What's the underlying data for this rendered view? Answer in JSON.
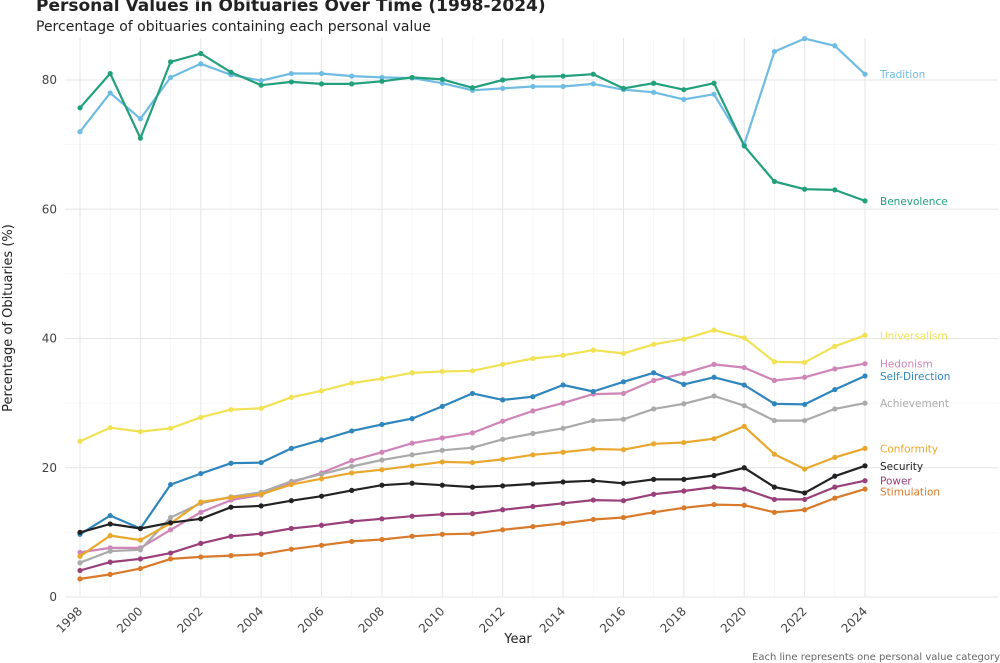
{
  "chart_data": {
    "type": "line",
    "title": "Personal Values in Obituaries Over Time (1998-2024)",
    "subtitle": "Percentage of obituaries containing each personal value",
    "xlabel": "Year",
    "ylabel": "Percentage of Obituaries (%)",
    "caption": "Each line represents one personal value category",
    "xlim": [
      1998,
      2024
    ],
    "ylim": [
      0,
      86.5
    ],
    "x_ticks": [
      "1998",
      "2000",
      "2002",
      "2004",
      "2006",
      "2008",
      "2010",
      "2012",
      "2014",
      "2016",
      "2018",
      "2020",
      "2022",
      "2024"
    ],
    "y_ticks": [
      "0",
      "20",
      "40",
      "60",
      "80"
    ],
    "x": [
      1998,
      1999,
      2000,
      2001,
      2002,
      2003,
      2004,
      2005,
      2006,
      2007,
      2008,
      2009,
      2010,
      2011,
      2012,
      2013,
      2014,
      2015,
      2016,
      2017,
      2018,
      2019,
      2020,
      2021,
      2022,
      2023,
      2024
    ],
    "series": [
      {
        "name": "Tradition",
        "color": "#6fbce3",
        "values": [
          72.0,
          78.0,
          74.0,
          80.4,
          82.5,
          80.8,
          79.9,
          81.0,
          81.0,
          80.6,
          80.4,
          80.3,
          79.5,
          78.4,
          78.7,
          79.0,
          79.0,
          79.4,
          78.5,
          78.1,
          77.0,
          77.8,
          70.0,
          84.4,
          86.4,
          85.3,
          80.9
        ]
      },
      {
        "name": "Benevolence",
        "color": "#22a07c",
        "values": [
          75.7,
          81.0,
          71.0,
          82.8,
          84.1,
          81.2,
          79.2,
          79.7,
          79.4,
          79.4,
          79.8,
          80.4,
          80.1,
          78.8,
          80.0,
          80.5,
          80.6,
          80.9,
          78.7,
          79.5,
          78.5,
          79.5,
          69.8,
          64.3,
          63.1,
          63.0,
          61.3
        ]
      },
      {
        "name": "Universalism",
        "color": "#f1e255",
        "values": [
          24.1,
          26.2,
          25.6,
          26.1,
          27.8,
          29.0,
          29.2,
          30.9,
          31.9,
          33.1,
          33.8,
          34.7,
          34.9,
          35.0,
          36.0,
          36.9,
          37.4,
          38.2,
          37.7,
          39.1,
          39.9,
          41.3,
          40.1,
          36.4,
          36.3,
          38.8,
          40.5
        ]
      },
      {
        "name": "Hedonism",
        "color": "#cf85b8",
        "values": [
          6.9,
          7.6,
          7.6,
          10.4,
          13.1,
          15.0,
          15.8,
          17.7,
          19.2,
          21.1,
          22.4,
          23.8,
          24.6,
          25.4,
          27.2,
          28.8,
          30.0,
          31.4,
          31.5,
          33.5,
          34.6,
          36.0,
          35.5,
          33.5,
          34.0,
          35.3,
          36.1
        ]
      },
      {
        "name": "Self-Direction",
        "color": "#2f86bd",
        "values": [
          9.7,
          12.6,
          10.6,
          17.4,
          19.1,
          20.7,
          20.8,
          23.0,
          24.3,
          25.7,
          26.7,
          27.6,
          29.5,
          31.5,
          30.5,
          31.0,
          32.8,
          31.8,
          33.3,
          34.7,
          32.9,
          34.0,
          32.8,
          29.9,
          29.8,
          32.1,
          34.2
        ]
      },
      {
        "name": "Achievement",
        "color": "#aaaaaa",
        "values": [
          5.3,
          7.1,
          7.3,
          12.3,
          14.5,
          15.5,
          16.2,
          17.9,
          19.0,
          20.2,
          21.2,
          22.0,
          22.7,
          23.1,
          24.4,
          25.3,
          26.1,
          27.3,
          27.5,
          29.1,
          29.9,
          31.1,
          29.6,
          27.3,
          27.3,
          29.1,
          30.0
        ]
      },
      {
        "name": "Conformity",
        "color": "#e8a82e",
        "values": [
          6.3,
          9.5,
          8.8,
          11.4,
          14.7,
          15.4,
          15.9,
          17.4,
          18.3,
          19.2,
          19.7,
          20.3,
          20.9,
          20.8,
          21.3,
          22.0,
          22.4,
          22.9,
          22.8,
          23.7,
          23.9,
          24.5,
          26.4,
          22.1,
          19.8,
          21.6,
          23.0
        ]
      },
      {
        "name": "Security",
        "color": "#222222",
        "values": [
          10.0,
          11.3,
          10.6,
          11.5,
          12.1,
          13.9,
          14.1,
          14.9,
          15.6,
          16.5,
          17.3,
          17.6,
          17.3,
          17.0,
          17.2,
          17.5,
          17.8,
          18.0,
          17.6,
          18.2,
          18.2,
          18.8,
          20.0,
          17.0,
          16.1,
          18.7,
          20.3
        ]
      },
      {
        "name": "Power",
        "color": "#993f79",
        "values": [
          4.1,
          5.4,
          5.9,
          6.8,
          8.3,
          9.4,
          9.8,
          10.6,
          11.1,
          11.7,
          12.1,
          12.5,
          12.8,
          12.9,
          13.5,
          14.0,
          14.5,
          15.0,
          14.9,
          15.9,
          16.4,
          17.0,
          16.7,
          15.1,
          15.1,
          17.0,
          18.0
        ]
      },
      {
        "name": "Stimulation",
        "color": "#d87a2a",
        "values": [
          2.8,
          3.5,
          4.4,
          5.9,
          6.2,
          6.4,
          6.6,
          7.4,
          8.0,
          8.6,
          8.9,
          9.4,
          9.7,
          9.8,
          10.4,
          10.9,
          11.4,
          12.0,
          12.3,
          13.1,
          13.8,
          14.3,
          14.2,
          13.1,
          13.5,
          15.3,
          16.7
        ]
      }
    ]
  }
}
